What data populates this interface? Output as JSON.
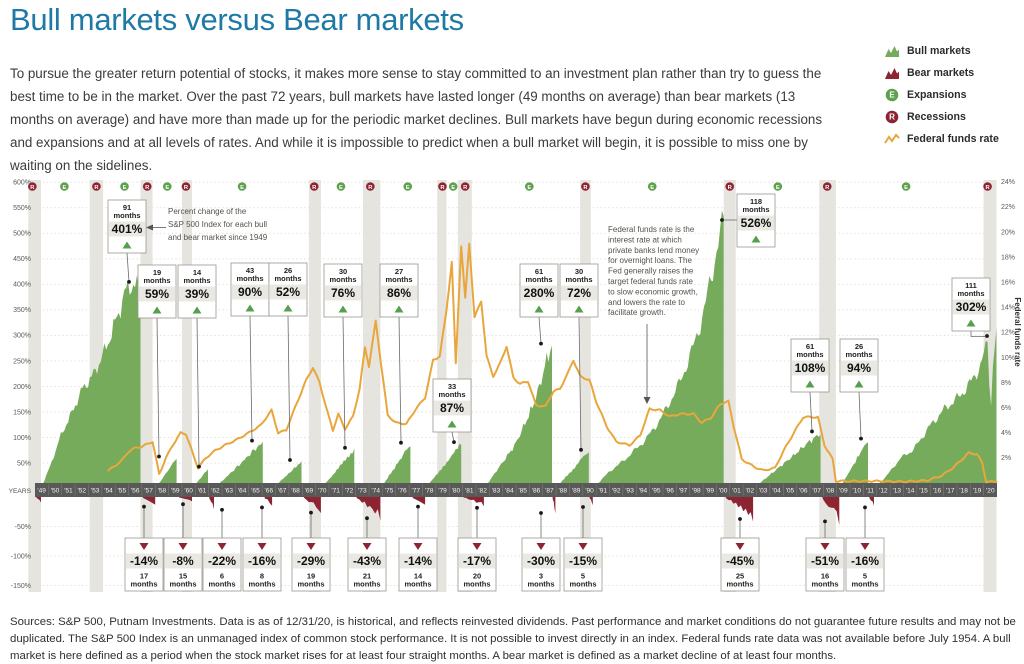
{
  "page": {
    "title": "Bull markets versus Bear markets",
    "intro": "To pursue the greater return potential of stocks, it makes more sense to stay committed to an investment plan rather than try to guess the best time to be in the market. Over the past 72 years, bull markets have lasted longer (49 months on average) than bear markets (13 months on average) and have more than made up for the periodic market declines. Bull markets have begun during economic recessions and expansions and at all levels of rates. And while it is impossible to predict when a bull market will begin, it is possible to miss one by waiting on the sidelines.",
    "sources": "Sources: S&P 500, Putnam Investments. Data is as of 12/31/20, is historical, and reflects reinvested dividends. Past performance and market conditions do not guarantee future results and may not be duplicated. The S&P 500 Index is an unmanaged index of common stock performance. It is not possible to invest directly in an index. Federal funds rate data was not available before July 1954. A bull market is here defined as a period when the stock market rises for at least four straight months. A bear market is defined as a market decline of at least four months."
  },
  "legend": {
    "items": [
      {
        "label": "Bull markets",
        "icon": "bull-markets-icon"
      },
      {
        "label": "Bear markets",
        "icon": "bear-markets-icon"
      },
      {
        "label": "Expansions",
        "icon": "expansions-icon",
        "letter": "E"
      },
      {
        "label": "Recessions",
        "icon": "recessions-icon",
        "letter": "R"
      },
      {
        "label": "Federal funds rate",
        "icon": "federal-funds-rate-icon"
      }
    ]
  },
  "colors": {
    "bull": "#76ab5c",
    "bear": "#8c2431",
    "expansion": "#5ea04d",
    "recession": "#8e2433",
    "fed_rate": "#e8a63c",
    "recession_band": "#e6e4de",
    "year_strip": "#595959",
    "box_border": "#9b978f",
    "box_gray": "#e9e8e2",
    "title_blue": "#1e7aa5"
  },
  "chart_data": {
    "type": "area",
    "title": "Bull markets versus Bear markets",
    "months_word": "months",
    "years_axis_label": "YEARS",
    "x_years": [
      "'49",
      "'50",
      "'51",
      "'52",
      "'53",
      "'54",
      "'55",
      "'56",
      "'57",
      "'58",
      "'59",
      "'60",
      "'61",
      "'62",
      "'63",
      "'64",
      "'65",
      "'66",
      "'67",
      "'68",
      "'69",
      "'70",
      "'71",
      "'72",
      "'73",
      "'74",
      "'75",
      "'76",
      "'77",
      "'78",
      "'79",
      "'80",
      "'81",
      "'82",
      "'83",
      "'84",
      "'85",
      "'86",
      "'87",
      "'88",
      "'89",
      "'90",
      "'91",
      "'92",
      "'93",
      "'94",
      "'95",
      "'96",
      "'97",
      "'98",
      "'99",
      "'00",
      "'01",
      "'02",
      "'03",
      "'04",
      "'05",
      "'06",
      "'07",
      "'08",
      "'09",
      "'10",
      "'11",
      "'12",
      "'13",
      "'14",
      "'15",
      "'16",
      "'17",
      "'18",
      "'19",
      "'20"
    ],
    "left_axis": {
      "ticks": [
        "600%",
        "550%",
        "500%",
        "450%",
        "400%",
        "350%",
        "300%",
        "250%",
        "200%",
        "150%",
        "100%",
        "50%",
        "-50%",
        "-100%",
        "-150%"
      ]
    },
    "right_axis": {
      "label": "Federal funds rate",
      "ticks": [
        "24%",
        "22%",
        "20%",
        "18%",
        "16%",
        "14%",
        "12%",
        "10%",
        "8%",
        "6%",
        "4%",
        "2%"
      ]
    },
    "bull_markets": [
      {
        "months": "91",
        "change": "401%",
        "peak": 401,
        "start": 1949.45,
        "end": 1956.9
      },
      {
        "months": "19",
        "change": "59%",
        "peak": 59,
        "start": 1958.0,
        "end": 1959.6
      },
      {
        "months": "14",
        "change": "39%",
        "peak": 39,
        "start": 1960.75,
        "end": 1961.95
      },
      {
        "months": "43",
        "change": "90%",
        "peak": 90,
        "start": 1962.4,
        "end": 1966.05
      },
      {
        "months": "26",
        "change": "52%",
        "peak": 52,
        "start": 1966.75,
        "end": 1968.95
      },
      {
        "months": "30",
        "change": "76%",
        "peak": 76,
        "start": 1970.4,
        "end": 1972.9
      },
      {
        "months": "27",
        "change": "86%",
        "peak": 86,
        "start": 1974.85,
        "end": 1977.1
      },
      {
        "months": "33",
        "change": "87%",
        "peak": 87,
        "start": 1978.2,
        "end": 1980.9
      },
      {
        "months": "61",
        "change": "280%",
        "peak": 280,
        "start": 1982.6,
        "end": 1987.7
      },
      {
        "months": "30",
        "change": "72%",
        "peak": 72,
        "start": 1987.95,
        "end": 1990.45
      },
      {
        "months": "118",
        "change": "526%",
        "peak": 526,
        "start": 1990.75,
        "end": 2000.55
      },
      {
        "months": "61",
        "change": "108%",
        "peak": 108,
        "start": 2002.75,
        "end": 2007.8
      },
      {
        "months": "26",
        "change": "94%",
        "peak": 94,
        "start": 2009.2,
        "end": 2011.35
      },
      {
        "months": "111",
        "change": "302%",
        "peak": 302,
        "start": 2011.8,
        "end": 2020.97
      }
    ],
    "initial_bear": {
      "decline": -10,
      "start": 1949.0,
      "end": 1949.45
    },
    "bear_markets": [
      {
        "months": "17",
        "change": "-14%",
        "decline": -14,
        "start": 1956.9,
        "end": 1958.0
      },
      {
        "months": "15",
        "change": "-8%",
        "decline": -8,
        "start": 1959.6,
        "end": 1960.75
      },
      {
        "months": "6",
        "change": "-22%",
        "decline": -22,
        "start": 1961.95,
        "end": 1962.4
      },
      {
        "months": "8",
        "change": "-16%",
        "decline": -16,
        "start": 1966.05,
        "end": 1966.75
      },
      {
        "months": "19",
        "change": "-29%",
        "decline": -29,
        "start": 1968.95,
        "end": 1970.4
      },
      {
        "months": "21",
        "change": "-43%",
        "decline": -43,
        "start": 1972.9,
        "end": 1974.85
      },
      {
        "months": "14",
        "change": "-14%",
        "decline": -14,
        "start": 1977.1,
        "end": 1978.2
      },
      {
        "months": "20",
        "change": "-17%",
        "decline": -17,
        "start": 1980.9,
        "end": 1982.6
      },
      {
        "months": "3",
        "change": "-30%",
        "decline": -30,
        "start": 1987.7,
        "end": 1987.95
      },
      {
        "months": "5",
        "change": "-15%",
        "decline": -15,
        "start": 1990.45,
        "end": 1990.75
      },
      {
        "months": "25",
        "change": "-45%",
        "decline": -45,
        "start": 2000.55,
        "end": 2002.75
      },
      {
        "months": "16",
        "change": "-51%",
        "decline": -51,
        "start": 2007.8,
        "end": 2009.2
      },
      {
        "months": "5",
        "change": "-16%",
        "decline": -16,
        "start": 2011.35,
        "end": 2011.8
      }
    ],
    "recessions": [
      [
        1948.5,
        1949.45
      ],
      [
        1953.1,
        1954.1
      ],
      [
        1956.9,
        1957.8
      ],
      [
        1960.0,
        1960.75
      ],
      [
        1969.5,
        1970.4
      ],
      [
        1973.55,
        1974.85
      ],
      [
        1979.1,
        1979.8
      ],
      [
        1980.65,
        1981.7
      ],
      [
        1989.8,
        1990.6
      ],
      [
        2000.55,
        2001.45
      ],
      [
        2007.7,
        2008.95
      ],
      [
        2020.0,
        2020.97
      ]
    ],
    "business_cycle": [
      {
        "t": "R",
        "y": 1948.8
      },
      {
        "t": "E",
        "y": 1951.2
      },
      {
        "t": "R",
        "y": 1953.6
      },
      {
        "t": "E",
        "y": 1955.7
      },
      {
        "t": "R",
        "y": 1957.4
      },
      {
        "t": "E",
        "y": 1958.9
      },
      {
        "t": "R",
        "y": 1960.3
      },
      {
        "t": "E",
        "y": 1964.5
      },
      {
        "t": "R",
        "y": 1969.9
      },
      {
        "t": "E",
        "y": 1971.9
      },
      {
        "t": "R",
        "y": 1974.1
      },
      {
        "t": "E",
        "y": 1976.9
      },
      {
        "t": "R",
        "y": 1979.5
      },
      {
        "t": "E",
        "y": 1980.3
      },
      {
        "t": "R",
        "y": 1981.2
      },
      {
        "t": "E",
        "y": 1986.0
      },
      {
        "t": "R",
        "y": 1990.2
      },
      {
        "t": "E",
        "y": 1995.2
      },
      {
        "t": "R",
        "y": 2001.0
      },
      {
        "t": "E",
        "y": 2004.6
      },
      {
        "t": "R",
        "y": 2008.3
      },
      {
        "t": "E",
        "y": 2014.2
      },
      {
        "t": "R",
        "y": 2020.3
      }
    ],
    "fed_funds_rate": [
      [
        1954.5,
        1.0
      ],
      [
        1954.9,
        1.3
      ],
      [
        1955.5,
        1.8
      ],
      [
        1956,
        2.5
      ],
      [
        1956.5,
        2.8
      ],
      [
        1957,
        2.9
      ],
      [
        1957.8,
        3.3
      ],
      [
        1958.3,
        0.7
      ],
      [
        1958.8,
        2.0
      ],
      [
        1959.3,
        3.0
      ],
      [
        1959.9,
        4.0
      ],
      [
        1960.3,
        3.9
      ],
      [
        1960.8,
        2.4
      ],
      [
        1961.2,
        1.2
      ],
      [
        1961.8,
        2.0
      ],
      [
        1962.5,
        2.6
      ],
      [
        1963.2,
        3.0
      ],
      [
        1964,
        3.4
      ],
      [
        1965,
        4.0
      ],
      [
        1965.9,
        4.6
      ],
      [
        1966.7,
        5.8
      ],
      [
        1967.2,
        4.0
      ],
      [
        1967.8,
        4.2
      ],
      [
        1968.5,
        6.1
      ],
      [
        1969.3,
        8.2
      ],
      [
        1969.8,
        9.2
      ],
      [
        1970.3,
        8.0
      ],
      [
        1970.9,
        5.6
      ],
      [
        1971.3,
        4.2
      ],
      [
        1971.7,
        5.5
      ],
      [
        1972.2,
        4.3
      ],
      [
        1972.8,
        5.3
      ],
      [
        1973.3,
        7.5
      ],
      [
        1973.7,
        10.8
      ],
      [
        1974.0,
        9.3
      ],
      [
        1974.5,
        12.9
      ],
      [
        1974.9,
        9.5
      ],
      [
        1975.4,
        5.4
      ],
      [
        1976.0,
        4.8
      ],
      [
        1976.8,
        4.7
      ],
      [
        1977.5,
        5.9
      ],
      [
        1978.2,
        6.8
      ],
      [
        1978.8,
        9.8
      ],
      [
        1979.3,
        10.1
      ],
      [
        1979.8,
        13.8
      ],
      [
        1980.2,
        17.6
      ],
      [
        1980.5,
        9.5
      ],
      [
        1980.9,
        18.9
      ],
      [
        1981.2,
        14.7
      ],
      [
        1981.5,
        19.1
      ],
      [
        1981.9,
        13.2
      ],
      [
        1982.4,
        14.5
      ],
      [
        1982.8,
        10.1
      ],
      [
        1983.3,
        8.5
      ],
      [
        1983.8,
        9.5
      ],
      [
        1984.3,
        10.9
      ],
      [
        1984.8,
        8.4
      ],
      [
        1985.3,
        7.9
      ],
      [
        1985.9,
        8.1
      ],
      [
        1986.5,
        6.2
      ],
      [
        1987.2,
        6.1
      ],
      [
        1987.8,
        7.3
      ],
      [
        1988.3,
        7.5
      ],
      [
        1988.9,
        8.8
      ],
      [
        1989.3,
        9.8
      ],
      [
        1989.8,
        8.5
      ],
      [
        1990.5,
        8.2
      ],
      [
        1991,
        6.5
      ],
      [
        1991.8,
        4.5
      ],
      [
        1992.5,
        3.3
      ],
      [
        1993.5,
        3.0
      ],
      [
        1994.3,
        3.8
      ],
      [
        1995.0,
        5.9
      ],
      [
        1995.8,
        5.8
      ],
      [
        1996.5,
        5.3
      ],
      [
        1997.3,
        5.5
      ],
      [
        1998.3,
        5.5
      ],
      [
        1998.9,
        4.8
      ],
      [
        1999.6,
        5.2
      ],
      [
        2000.3,
        6.3
      ],
      [
        2000.9,
        6.5
      ],
      [
        2001.3,
        4.5
      ],
      [
        2001.9,
        1.9
      ],
      [
        2002.8,
        1.3
      ],
      [
        2003.5,
        1.0
      ],
      [
        2004.4,
        1.2
      ],
      [
        2005.0,
        2.5
      ],
      [
        2005.8,
        4.0
      ],
      [
        2006.5,
        5.25
      ],
      [
        2007.6,
        5.25
      ],
      [
        2008.1,
        3.0
      ],
      [
        2008.7,
        1.9
      ],
      [
        2008.95,
        0.15
      ],
      [
        2010,
        0.15
      ],
      [
        2012,
        0.15
      ],
      [
        2014,
        0.1
      ],
      [
        2015.8,
        0.2
      ],
      [
        2016.9,
        0.6
      ],
      [
        2017.8,
        1.3
      ],
      [
        2018.9,
        2.4
      ],
      [
        2019.5,
        2.3
      ],
      [
        2019.9,
        1.6
      ],
      [
        2020.2,
        0.1
      ],
      [
        2020.97,
        0.1
      ]
    ],
    "annotations": [
      {
        "name": "percent-change-note",
        "lines": [
          "Percent change of the",
          "S&P 500 Index for each bull",
          "and bear market since 1949"
        ]
      },
      {
        "name": "fed-funds-note",
        "lines": [
          "Federal funds rate is the",
          "interest rate at which",
          "private banks lend money",
          "for overnight loans. The",
          "Fed generally raises the",
          "target federal funds rate",
          "to slow economic growth,",
          "and lowers the rate to",
          "facilitate growth."
        ]
      }
    ]
  }
}
